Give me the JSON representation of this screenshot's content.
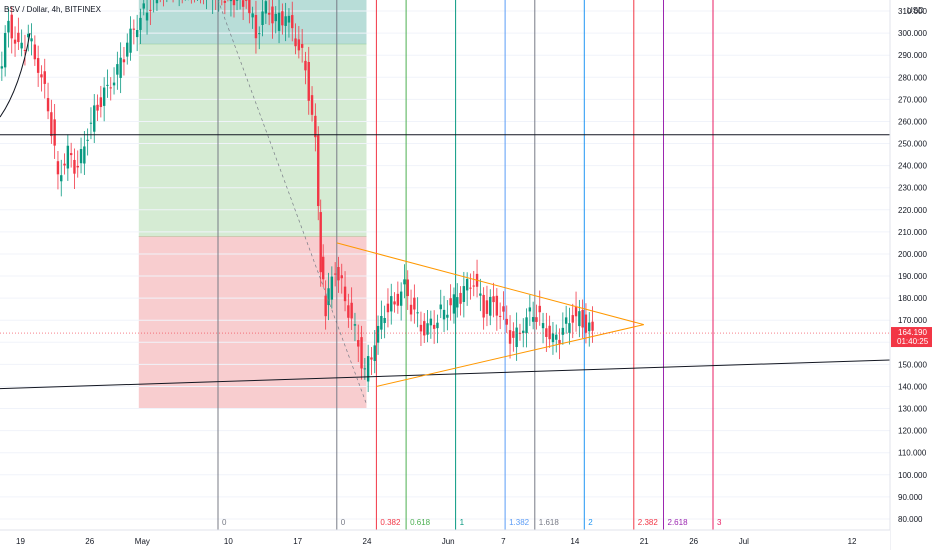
{
  "title": "BSV / Dollar, 4h, BITFINEX",
  "chart_data": {
    "type": "candlestick",
    "symbol": "BSV / Dollar",
    "interval": "4h",
    "exchange": "BITFINEX",
    "currency": "USD",
    "ylim": [
      75,
      315
    ],
    "y_ticks": [
      "310.000",
      "300.000",
      "290.000",
      "280.000",
      "270.000",
      "260.000",
      "250.000",
      "240.000",
      "230.000",
      "220.000",
      "210.000",
      "200.000",
      "190.000",
      "180.000",
      "170.000",
      "160.000",
      "150.000",
      "140.000",
      "130.000",
      "120.000",
      "110.000",
      "100.000",
      "90.000",
      "80.000"
    ],
    "x_ticks": [
      "19",
      "26",
      "May",
      "10",
      "17",
      "24",
      "Jun",
      "7",
      "14",
      "21",
      "26",
      "Jul",
      "12"
    ],
    "x_tick_dates": [
      "2021-04-19",
      "2021-04-26",
      "2021-05-01",
      "2021-05-10",
      "2021-05-17",
      "2021-05-24",
      "2021-06-01",
      "2021-06-07",
      "2021-06-14",
      "2021-06-21",
      "2021-06-26",
      "2021-07-01",
      "2021-07-12"
    ],
    "last_price": "164.190",
    "countdown": "01:40:25",
    "fib_time_zones": [
      {
        "label": "0",
        "date": "2021-05-09",
        "color": "#787b86"
      },
      {
        "label": "0",
        "date": "2021-05-21",
        "color": "#787b86"
      },
      {
        "label": "0.382",
        "date": "2021-05-25",
        "color": "#f23645"
      },
      {
        "label": "0.618",
        "date": "2021-05-28",
        "color": "#4caf50"
      },
      {
        "label": "1",
        "date": "2021-06-02",
        "color": "#089981"
      },
      {
        "label": "1.382",
        "date": "2021-06-07",
        "color": "#5b9cf6"
      },
      {
        "label": "1.618",
        "date": "2021-06-10",
        "color": "#787b86"
      },
      {
        "label": "2",
        "date": "2021-06-15",
        "color": "#2196f3"
      },
      {
        "label": "2.382",
        "date": "2021-06-20",
        "color": "#f23645"
      },
      {
        "label": "2.618",
        "date": "2021-06-23",
        "color": "#9c27b0"
      },
      {
        "label": "3",
        "date": "2021-06-28",
        "color": "#e91e63"
      }
    ],
    "horizontal_line": 254,
    "triangle": {
      "upper_start": [
        "2021-05-21",
        205
      ],
      "apex": [
        "2021-06-20",
        168
      ],
      "lower_start": [
        "2021-05-25",
        140
      ]
    },
    "support_line": {
      "start": [
        "2021-04-19",
        139
      ],
      "end": [
        "2021-07-19",
        152
      ]
    },
    "zones": [
      {
        "type": "target",
        "color": "#b8ddd8",
        "from": 295,
        "to": 315
      },
      {
        "type": "target",
        "color": "#d5ebd3",
        "from": 208,
        "to": 295
      },
      {
        "type": "stop",
        "color": "#f8cdcf",
        "from": 130,
        "to": 208
      }
    ],
    "price_path": [
      [
        "2021-04-16",
        300
      ],
      [
        "2021-04-17",
        280
      ],
      [
        "2021-04-18",
        305
      ],
      [
        "2021-04-19",
        292
      ],
      [
        "2021-04-20",
        298
      ],
      [
        "2021-04-21",
        285
      ],
      [
        "2021-04-22",
        268
      ],
      [
        "2021-04-23",
        235
      ],
      [
        "2021-04-24",
        245
      ],
      [
        "2021-04-25",
        238
      ],
      [
        "2021-04-26",
        255
      ],
      [
        "2021-04-27",
        268
      ],
      [
        "2021-04-28",
        275
      ],
      [
        "2021-04-29",
        282
      ],
      [
        "2021-04-30",
        295
      ],
      [
        "2021-05-01",
        305
      ],
      [
        "2021-05-02",
        312
      ],
      [
        "2021-05-03",
        318
      ],
      [
        "2021-05-04",
        322
      ],
      [
        "2021-05-08",
        320
      ],
      [
        "2021-05-12",
        315
      ],
      [
        "2021-05-13",
        300
      ],
      [
        "2021-05-14",
        312
      ],
      [
        "2021-05-15",
        305
      ],
      [
        "2021-05-16",
        308
      ],
      [
        "2021-05-17",
        298
      ],
      [
        "2021-05-18",
        285
      ],
      [
        "2021-05-19",
        250
      ],
      [
        "2021-05-19T12",
        195
      ],
      [
        "2021-05-20",
        175
      ],
      [
        "2021-05-21",
        195
      ],
      [
        "2021-05-22",
        180
      ],
      [
        "2021-05-23",
        165
      ],
      [
        "2021-05-24",
        145
      ],
      [
        "2021-05-25",
        160
      ],
      [
        "2021-05-26",
        175
      ],
      [
        "2021-05-27",
        178
      ],
      [
        "2021-05-28",
        185
      ],
      [
        "2021-05-29",
        172
      ],
      [
        "2021-05-30",
        165
      ],
      [
        "2021-05-31",
        170
      ],
      [
        "2021-06-01",
        175
      ],
      [
        "2021-06-02",
        178
      ],
      [
        "2021-06-03",
        183
      ],
      [
        "2021-06-04",
        188
      ],
      [
        "2021-06-05",
        175
      ],
      [
        "2021-06-06",
        178
      ],
      [
        "2021-06-07",
        170
      ],
      [
        "2021-06-08",
        160
      ],
      [
        "2021-06-09",
        168
      ],
      [
        "2021-06-10",
        175
      ],
      [
        "2021-06-11",
        168
      ],
      [
        "2021-06-12",
        160
      ],
      [
        "2021-06-13",
        165
      ],
      [
        "2021-06-14",
        172
      ],
      [
        "2021-06-15",
        170
      ],
      [
        "2021-06-16",
        164
      ]
    ]
  }
}
